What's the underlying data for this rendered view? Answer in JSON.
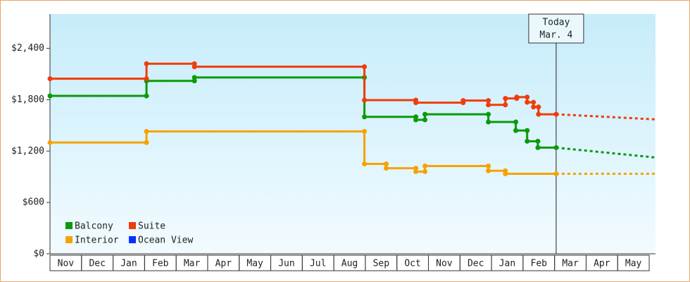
{
  "chart_data": {
    "type": "line",
    "step": true,
    "xlim": [
      0,
      19.2
    ],
    "ylim": [
      0,
      2800
    ],
    "xticks": [
      {
        "value": 0.5,
        "label": "Nov"
      },
      {
        "value": 1.5,
        "label": "Dec"
      },
      {
        "value": 2.5,
        "label": "Jan"
      },
      {
        "value": 3.5,
        "label": "Feb"
      },
      {
        "value": 4.5,
        "label": "Mar"
      },
      {
        "value": 5.5,
        "label": "Apr"
      },
      {
        "value": 6.5,
        "label": "May"
      },
      {
        "value": 7.5,
        "label": "Jun"
      },
      {
        "value": 8.5,
        "label": "Jul"
      },
      {
        "value": 9.5,
        "label": "Aug"
      },
      {
        "value": 10.5,
        "label": "Sep"
      },
      {
        "value": 11.5,
        "label": "Oct"
      },
      {
        "value": 12.5,
        "label": "Nov"
      },
      {
        "value": 13.5,
        "label": "Dec"
      },
      {
        "value": 14.5,
        "label": "Jan"
      },
      {
        "value": 15.5,
        "label": "Feb"
      },
      {
        "value": 16.5,
        "label": "Mar"
      },
      {
        "value": 17.5,
        "label": "Apr"
      },
      {
        "value": 18.5,
        "label": "May"
      }
    ],
    "yticks": [
      {
        "value": 0,
        "label": "$0"
      },
      {
        "value": 600,
        "label": "$600"
      },
      {
        "value": 1200,
        "label": "$1,200"
      },
      {
        "value": 1800,
        "label": "$1,800"
      },
      {
        "value": 2400,
        "label": "$2,400"
      }
    ],
    "today": {
      "x": 16.05,
      "label": [
        "Today",
        "Mar. 4"
      ]
    },
    "series": [
      {
        "name": "Balcony",
        "color": "#0a9a0a",
        "x": [
          0,
          3.06,
          3.06,
          4.58,
          4.58,
          9.97,
          9.97,
          11.6,
          11.6,
          11.89,
          11.89,
          13.9,
          13.9,
          14.77,
          14.77,
          15.13,
          15.13,
          15.47,
          15.47,
          16.05
        ],
        "values": [
          1845,
          1845,
          2020,
          2020,
          2060,
          2060,
          1600,
          1600,
          1565,
          1565,
          1630,
          1630,
          1540,
          1540,
          1440,
          1440,
          1315,
          1315,
          1240,
          1240
        ],
        "forecast": {
          "x": [
            16.05,
            19.2
          ],
          "values": [
            1240,
            1125
          ]
        }
      },
      {
        "name": "Suite",
        "color": "#f03c0c",
        "x": [
          0,
          3.06,
          3.06,
          4.58,
          4.58,
          9.97,
          9.97,
          11.6,
          11.6,
          13.1,
          13.1,
          13.9,
          13.9,
          14.44,
          14.44,
          14.8,
          14.8,
          15.13,
          15.13,
          15.33,
          15.33,
          15.49,
          15.49,
          16.05
        ],
        "values": [
          2045,
          2045,
          2220,
          2220,
          2185,
          2185,
          1795,
          1795,
          1765,
          1765,
          1790,
          1790,
          1740,
          1740,
          1815,
          1815,
          1830,
          1830,
          1770,
          1770,
          1715,
          1715,
          1630,
          1630
        ],
        "forecast": {
          "x": [
            16.05,
            19.2
          ],
          "values": [
            1630,
            1570
          ]
        }
      },
      {
        "name": "Interior",
        "color": "#f5a300",
        "x": [
          0,
          3.06,
          3.06,
          9.97,
          9.97,
          10.66,
          10.66,
          11.6,
          11.6,
          11.89,
          11.89,
          13.9,
          13.9,
          14.44,
          14.44,
          16.05
        ],
        "values": [
          1300,
          1300,
          1430,
          1430,
          1050,
          1050,
          1000,
          1000,
          960,
          960,
          1025,
          1025,
          970,
          970,
          935,
          935
        ],
        "forecast": {
          "x": [
            16.05,
            19.2
          ],
          "values": [
            935,
            935
          ]
        }
      },
      {
        "name": "Ocean View",
        "color": "#0033ff",
        "x": [],
        "values": []
      }
    ]
  }
}
